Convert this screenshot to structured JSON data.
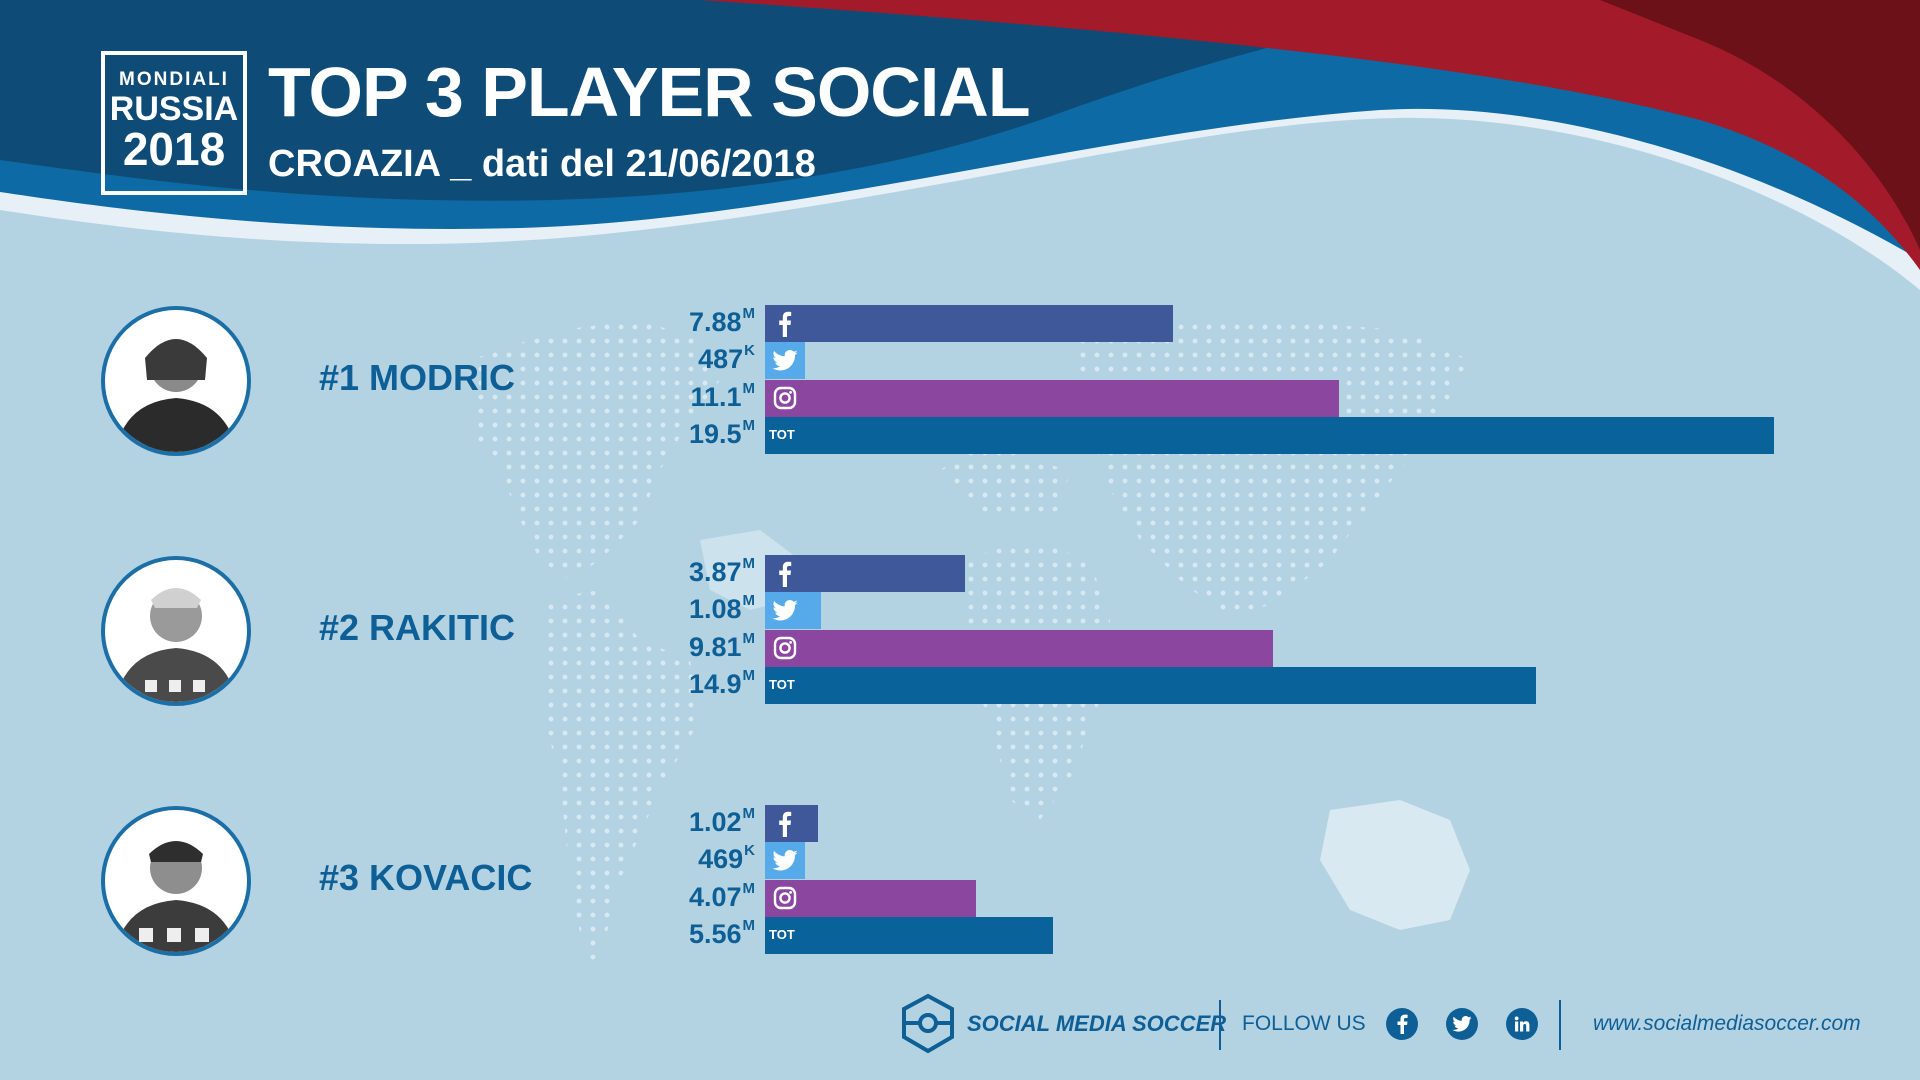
{
  "header": {
    "logo": {
      "line1": "MONDIALI",
      "line2": "RUSSIA",
      "line3": "2018"
    },
    "title": "TOP 3 PLAYER SOCIAL",
    "subtitle": "CROAZIA _ dati del 21/06/2018"
  },
  "colors": {
    "facebook": "#3f5899",
    "twitter": "#56aaea",
    "instagram": "#8b47a0",
    "total": "#0a629b",
    "text": "#0e5f96"
  },
  "chart_data": {
    "type": "bar",
    "orientation": "horizontal",
    "unit": "followers (millions)",
    "players": [
      {
        "rank_label": "#1 MODRIC",
        "metrics": [
          {
            "platform": "facebook",
            "value": 7.88,
            "num": "7.88",
            "suffix": "M"
          },
          {
            "platform": "twitter",
            "value": 0.487,
            "num": "487",
            "suffix": "K"
          },
          {
            "platform": "instagram",
            "value": 11.1,
            "num": "11.1",
            "suffix": "M"
          },
          {
            "platform": "total",
            "value": 19.5,
            "num": "19.5",
            "suffix": "M",
            "label": "TOT"
          }
        ]
      },
      {
        "rank_label": "#2 RAKITIC",
        "metrics": [
          {
            "platform": "facebook",
            "value": 3.87,
            "num": "3.87",
            "suffix": "M"
          },
          {
            "platform": "twitter",
            "value": 1.08,
            "num": "1.08",
            "suffix": "M"
          },
          {
            "platform": "instagram",
            "value": 9.81,
            "num": "9.81",
            "suffix": "M"
          },
          {
            "platform": "total",
            "value": 14.9,
            "num": "14.9",
            "suffix": "M",
            "label": "TOT"
          }
        ]
      },
      {
        "rank_label": "#3 KOVACIC",
        "metrics": [
          {
            "platform": "facebook",
            "value": 1.02,
            "num": "1.02",
            "suffix": "M"
          },
          {
            "platform": "twitter",
            "value": 0.469,
            "num": "469",
            "suffix": "K"
          },
          {
            "platform": "instagram",
            "value": 4.07,
            "num": "4.07",
            "suffix": "M"
          },
          {
            "platform": "total",
            "value": 5.56,
            "num": "5.56",
            "suffix": "M",
            "label": "TOT"
          }
        ]
      }
    ]
  },
  "footer": {
    "brand": "SOCIAL MEDIA SOCCER",
    "follow": "FOLLOW US",
    "social_icons": [
      "facebook-icon",
      "twitter-icon",
      "linkedin-icon"
    ],
    "url": "www.socialmediasoccer.com"
  }
}
